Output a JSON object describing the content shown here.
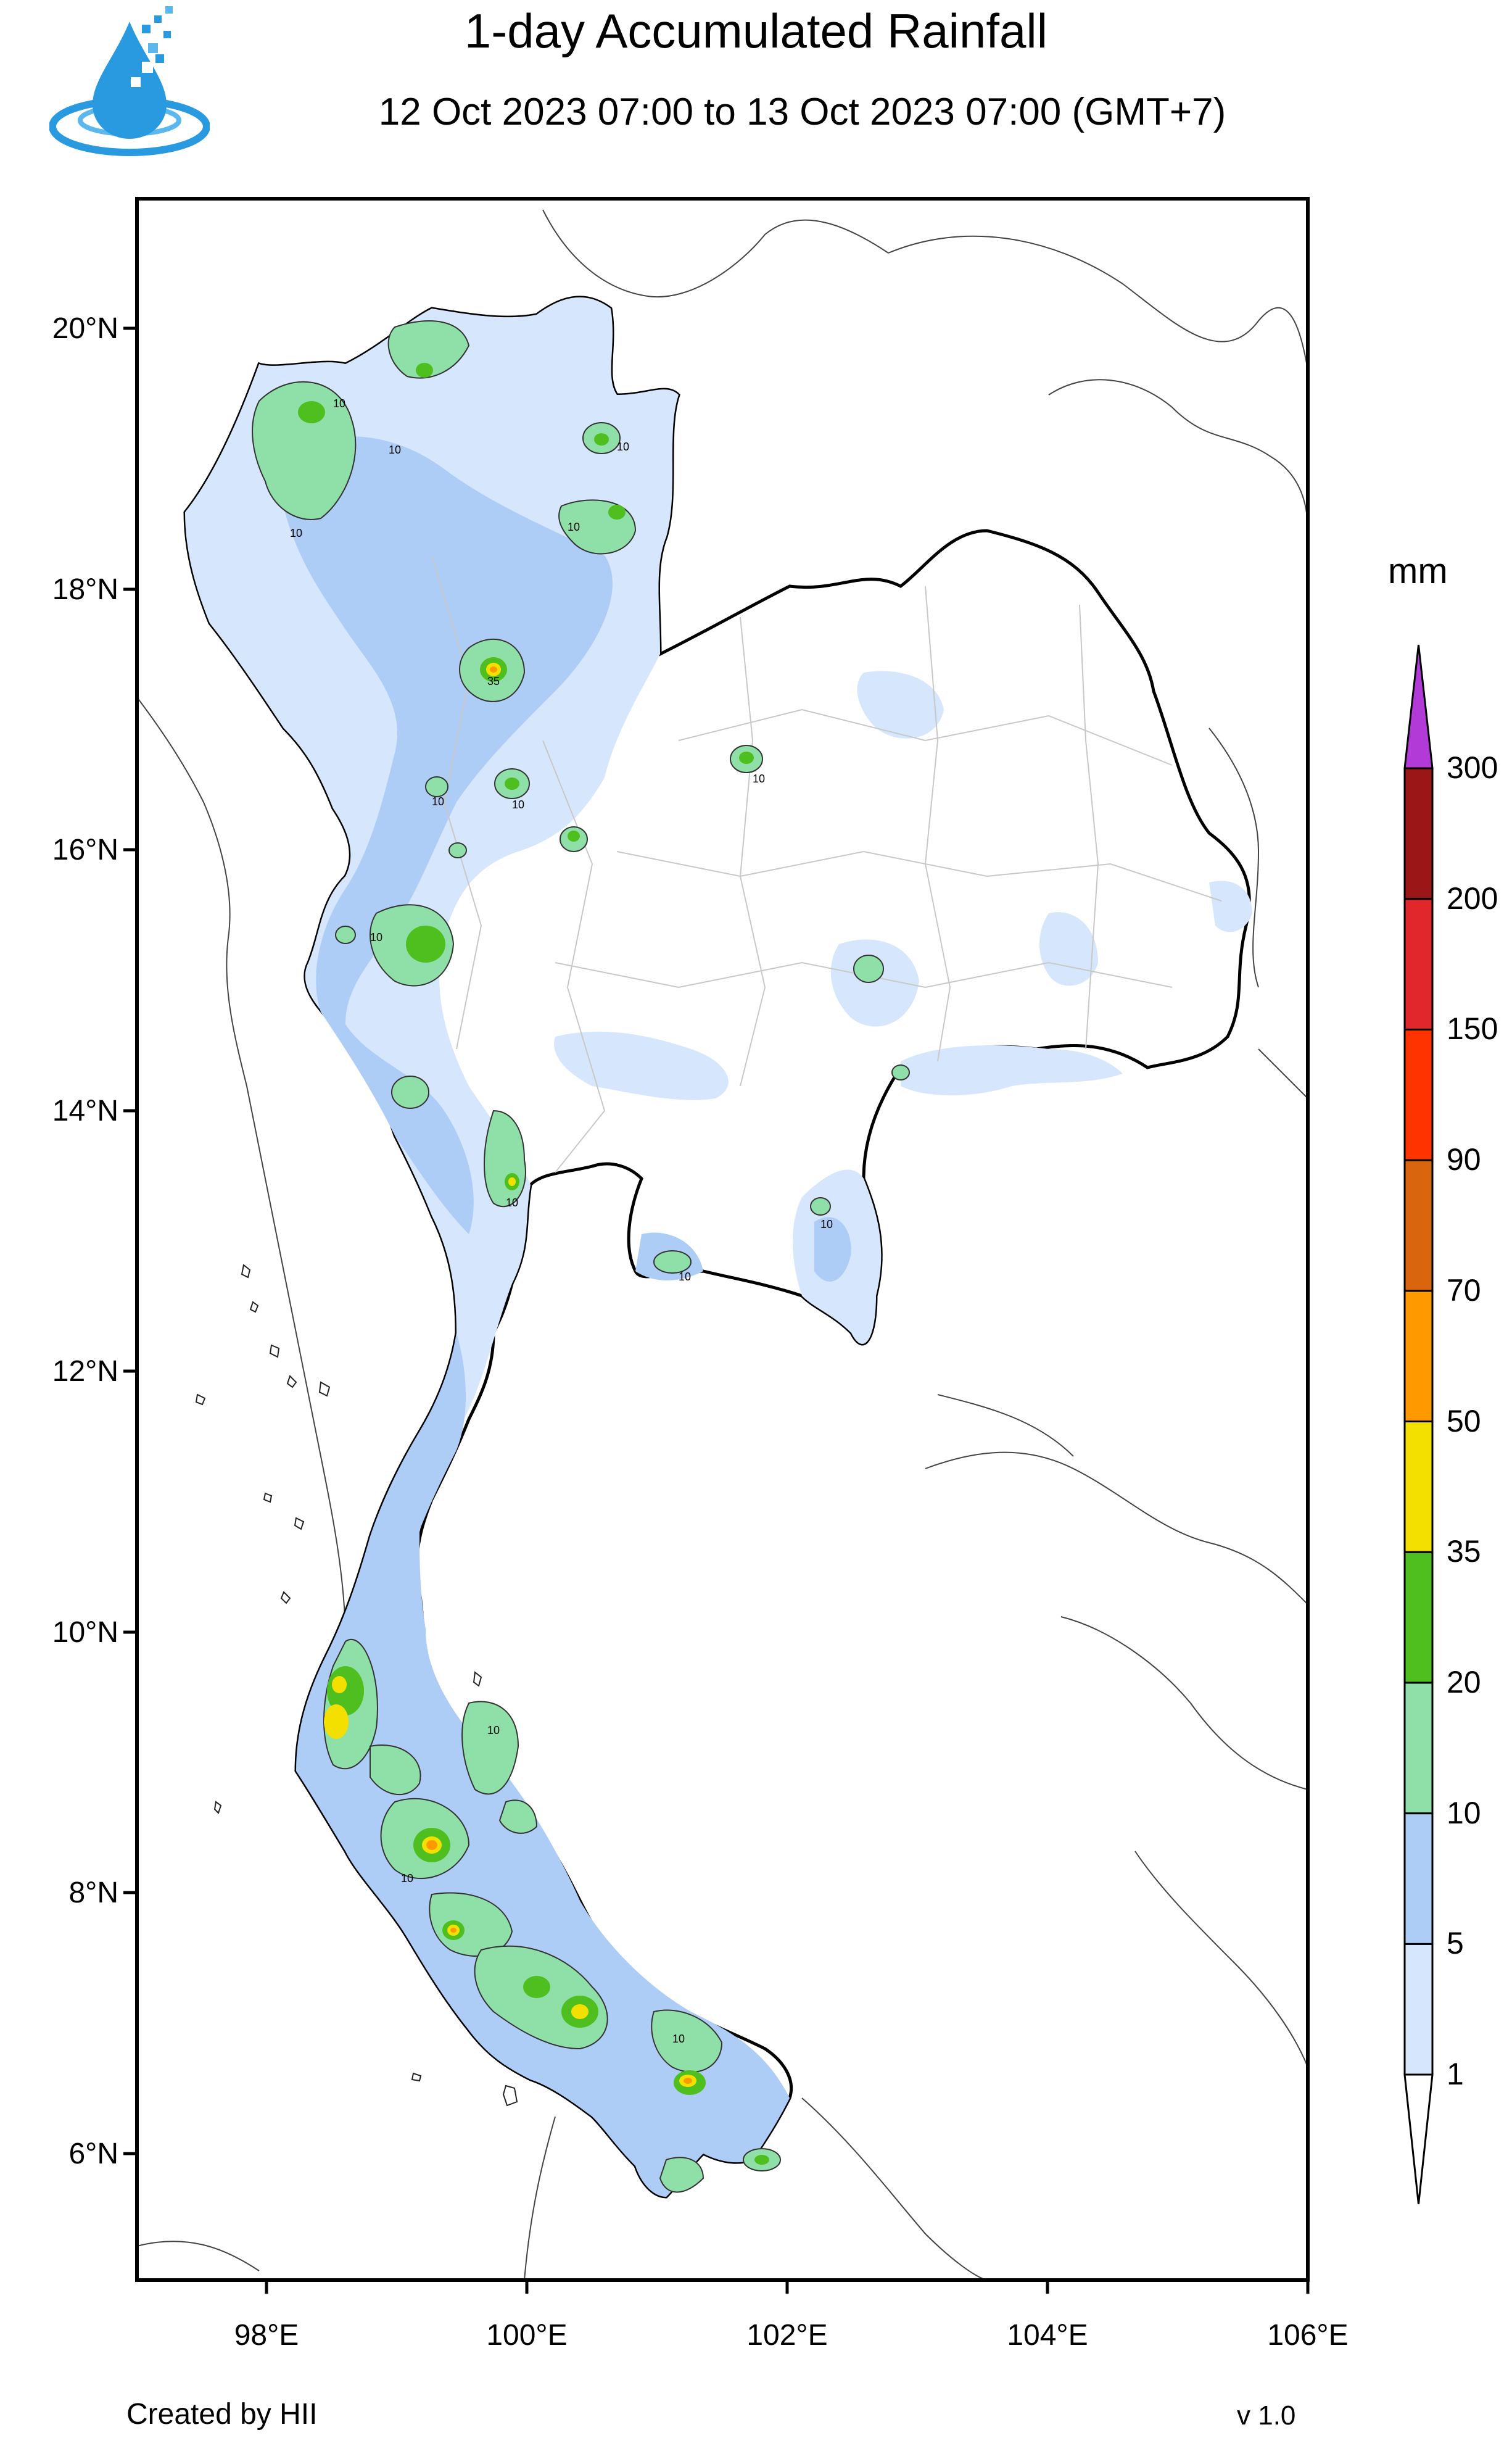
{
  "title": "1-day Accumulated Rainfall",
  "subtitle": "12 Oct 2023 07:00 to 13 Oct 2023 07:00 (GMT+7)",
  "footer": {
    "credit": "Created by HII",
    "version": "v 1.0"
  },
  "logo_icon": "water-drop-logo-icon",
  "axes": {
    "lat_labels": [
      "20°N",
      "18°N",
      "16°N",
      "14°N",
      "12°N",
      "10°N",
      "8°N",
      "6°N"
    ],
    "lon_labels": [
      "98°E",
      "100°E",
      "102°E",
      "104°E",
      "106°E"
    ]
  },
  "legend": {
    "units": "mm",
    "levels": [
      "1",
      "5",
      "10",
      "20",
      "35",
      "50",
      "70",
      "90",
      "150",
      "200",
      "300"
    ],
    "colors": [
      "#ffffff",
      "#d6e6fc",
      "#aecdf6",
      "#8fe0a8",
      "#4ebf1e",
      "#f4e000",
      "#ff9900",
      "#d9650f",
      "#ff3300",
      "#e1262c",
      "#9b1616",
      "#b23ad6"
    ]
  },
  "contour_labels": [
    "10",
    "35"
  ]
}
